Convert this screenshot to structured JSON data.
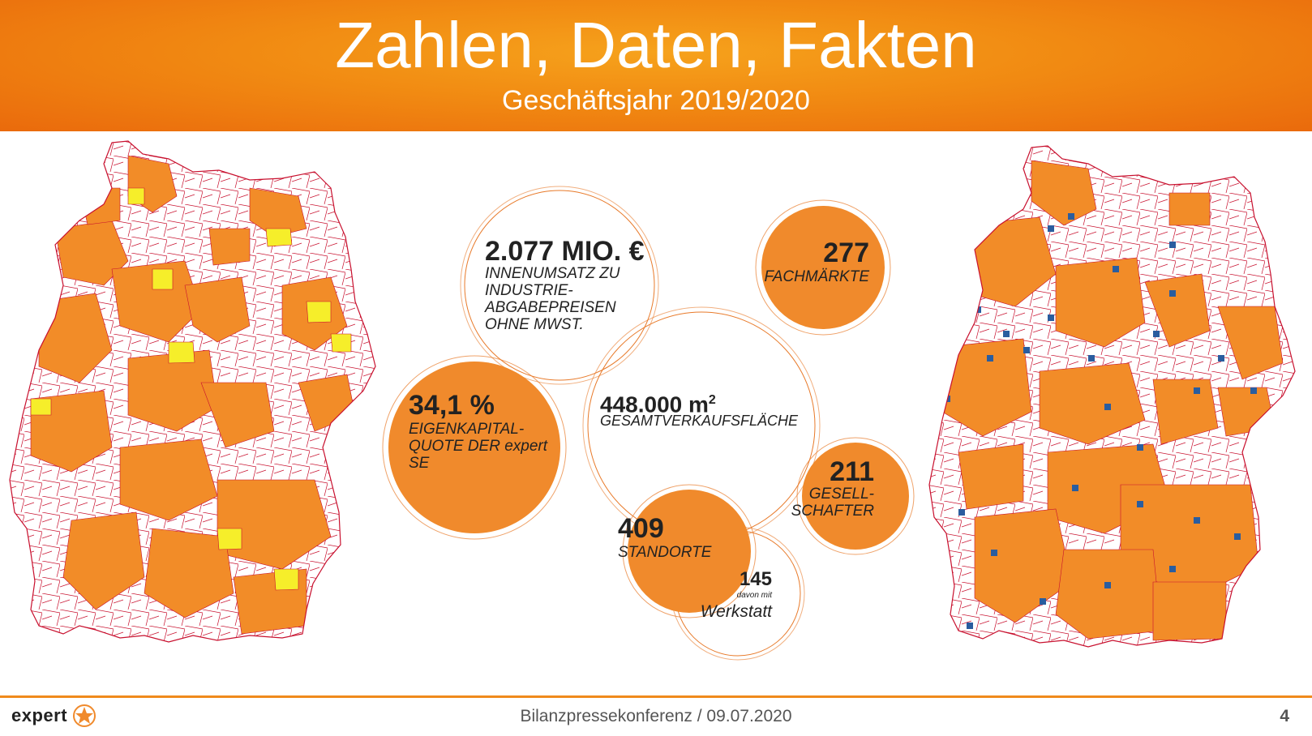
{
  "header": {
    "title": "Zahlen, Daten, Fakten",
    "subtitle": "Geschäftsjahr 2019/2020"
  },
  "stats": {
    "revenue": {
      "value": "2.077 MIO. €",
      "label_lines": [
        "INNENUMSATZ ZU",
        "INDUSTRIE-",
        "ABGABEPREISEN",
        "OHNE MWST."
      ]
    },
    "stores": {
      "value": "277",
      "label": "FACHMÄRKTE"
    },
    "equity": {
      "value": "34,1 %",
      "label_lines": [
        "EIGENKAPITAL-",
        "QUOTE DER expert SE"
      ]
    },
    "area": {
      "value": "448.000 m",
      "superscript": "2",
      "label": "GESAMTVERKAUFSFLÄCHE"
    },
    "partners": {
      "value": "211",
      "label_lines": [
        "GESELL-",
        "SCHAFTER"
      ]
    },
    "locations": {
      "value": "409",
      "label": "STANDORTE"
    },
    "workshops": {
      "value": "145",
      "small_label": "davon mit",
      "label": "Werkstatt"
    }
  },
  "footer": {
    "logo_text": "expert",
    "center_text": "Bilanzpressekonferenz / 09.07.2020",
    "page_number": "4"
  },
  "colors": {
    "orange": "#f08a2c",
    "header_orange": "#f18a12",
    "yellow": "#f6ee2a",
    "border": "#c8102e",
    "store_blue": "#2a5d9f"
  }
}
